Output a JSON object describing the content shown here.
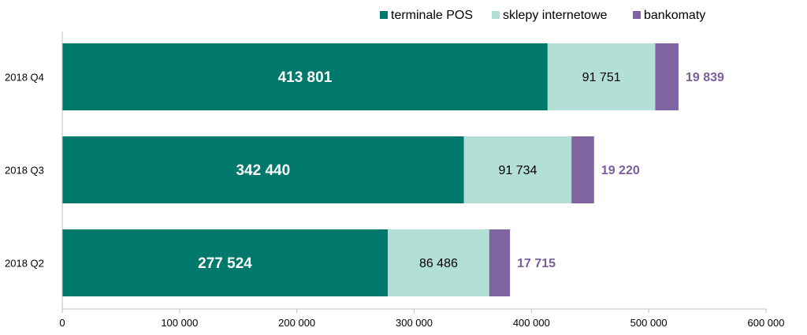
{
  "chart_data": {
    "type": "bar",
    "orientation": "horizontal",
    "stacked": true,
    "categories": [
      "2018 Q4",
      "2018 Q3",
      "2018 Q2"
    ],
    "series": [
      {
        "name": "terminale POS",
        "values": [
          413801,
          342440,
          277524
        ],
        "labels": [
          "413 801",
          "342 440",
          "277 524"
        ],
        "color": "#00786B",
        "label_color": "#FFFFFF"
      },
      {
        "name": "sklepy internetowe",
        "values": [
          91751,
          91734,
          86486
        ],
        "labels": [
          "91 751",
          "91 734",
          "86 486"
        ],
        "color": "#B2DFD6",
        "label_color": "#000000"
      },
      {
        "name": "bankomaty",
        "values": [
          19839,
          19220,
          17715
        ],
        "labels": [
          "19 839",
          "19 220",
          "17 715"
        ],
        "color": "#8064A2",
        "label_color": "#7B5E9E"
      }
    ],
    "xlim": [
      0,
      600000
    ],
    "xticks": [
      0,
      100000,
      200000,
      300000,
      400000,
      500000,
      600000
    ],
    "xtick_labels": [
      "0",
      "100 000",
      "200 000",
      "300 000",
      "400 000",
      "500 000",
      "600 000"
    ],
    "legend": "top-right",
    "grid": false
  }
}
